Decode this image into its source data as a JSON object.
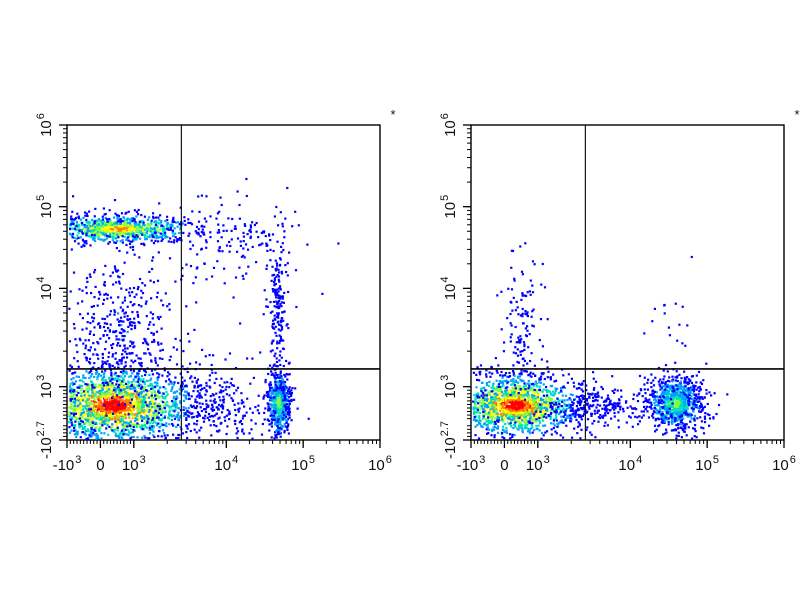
{
  "colors": {
    "background": "#ffffff",
    "axis": "#000000",
    "density_scale": [
      "#0000ff",
      "#00a0ff",
      "#00e0c0",
      "#7fff40",
      "#ffff00",
      "#ff8000",
      "#ff0000"
    ]
  },
  "chart_data": [
    {
      "type": "scatter",
      "subtype": "flow-cytometry-pseudocolor-density-plot",
      "title": "",
      "xlabel": "",
      "ylabel": "",
      "x_scale": "biexponential",
      "y_scale": "biexponential",
      "xlim": [
        -1000,
        1000000
      ],
      "ylim": [
        -501,
        1000000
      ],
      "x_ticks": [
        {
          "value": -1000,
          "base": "-10",
          "exp": "3"
        },
        {
          "value": 0,
          "base": "0",
          "exp": ""
        },
        {
          "value": 1000,
          "base": "10",
          "exp": "3"
        },
        {
          "value": 10000,
          "base": "10",
          "exp": "4"
        },
        {
          "value": 100000,
          "base": "10",
          "exp": "5"
        },
        {
          "value": 1000000,
          "base": "10",
          "exp": "6"
        }
      ],
      "y_ticks": [
        {
          "value": -501,
          "base": "-10",
          "exp": "2.7"
        },
        {
          "value": 1000,
          "base": "10",
          "exp": "3"
        },
        {
          "value": 10000,
          "base": "10",
          "exp": "4"
        },
        {
          "value": 100000,
          "base": "10",
          "exp": "5"
        },
        {
          "value": 1000000,
          "base": "10",
          "exp": "6"
        }
      ],
      "gate": {
        "x": 2600,
        "y": 1500
      },
      "corner_mark": "*",
      "grid": false,
      "legend": "none",
      "populations": [
        {
          "x": 500,
          "y": 55000,
          "sx": 0.55,
          "sy": 0.09,
          "count": 700,
          "peak": 0.8
        },
        {
          "x": 400,
          "y": 500,
          "sx": 0.55,
          "sy": 0.25,
          "count": 1700,
          "peak": 1.0
        },
        {
          "x": 47000,
          "y": 550,
          "sx": 0.08,
          "sy": 0.22,
          "count": 450,
          "peak": 0.55
        },
        {
          "x": 500,
          "y": 3000,
          "sx": 0.5,
          "sy": 0.55,
          "count": 320,
          "peak": 0.12
        },
        {
          "x": 8000,
          "y": 500,
          "sx": 0.45,
          "sy": 0.3,
          "count": 170,
          "peak": 0.08
        },
        {
          "x": 12000,
          "y": 40000,
          "sx": 0.55,
          "sy": 0.3,
          "count": 110,
          "peak": 0.05
        },
        {
          "x": 45000,
          "y": 6000,
          "sx": 0.08,
          "sy": 0.5,
          "count": 130,
          "peak": 0.08
        }
      ]
    },
    {
      "type": "scatter",
      "subtype": "flow-cytometry-pseudocolor-density-plot",
      "title": "",
      "xlabel": "",
      "ylabel": "",
      "x_scale": "biexponential",
      "y_scale": "biexponential",
      "xlim": [
        -1000,
        1000000
      ],
      "ylim": [
        -501,
        1000000
      ],
      "x_ticks": [
        {
          "value": -1000,
          "base": "-10",
          "exp": "3"
        },
        {
          "value": 0,
          "base": "0",
          "exp": ""
        },
        {
          "value": 1000,
          "base": "10",
          "exp": "3"
        },
        {
          "value": 10000,
          "base": "10",
          "exp": "4"
        },
        {
          "value": 100000,
          "base": "10",
          "exp": "5"
        },
        {
          "value": 1000000,
          "base": "10",
          "exp": "6"
        }
      ],
      "y_ticks": [
        {
          "value": -501,
          "base": "-10",
          "exp": "2.7"
        },
        {
          "value": 1000,
          "base": "10",
          "exp": "3"
        },
        {
          "value": 10000,
          "base": "10",
          "exp": "4"
        },
        {
          "value": 100000,
          "base": "10",
          "exp": "5"
        },
        {
          "value": 1000000,
          "base": "10",
          "exp": "6"
        }
      ],
      "gate": {
        "x": 2600,
        "y": 1500
      },
      "corner_mark": "*",
      "grid": false,
      "legend": "none",
      "populations": [
        {
          "x": 300,
          "y": 500,
          "sx": 0.45,
          "sy": 0.2,
          "count": 1300,
          "peak": 1.0
        },
        {
          "x": 38000,
          "y": 550,
          "sx": 0.2,
          "sy": 0.18,
          "count": 700,
          "peak": 0.5
        },
        {
          "x": 4000,
          "y": 500,
          "sx": 0.4,
          "sy": 0.12,
          "count": 150,
          "peak": 0.08
        },
        {
          "x": 500,
          "y": 3000,
          "sx": 0.15,
          "sy": 0.5,
          "count": 90,
          "peak": 0.05
        },
        {
          "x": 35000,
          "y": 3500,
          "sx": 0.25,
          "sy": 0.4,
          "count": 15,
          "peak": 0.03
        }
      ]
    }
  ]
}
